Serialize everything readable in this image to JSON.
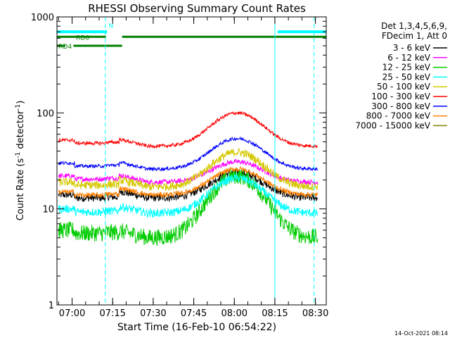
{
  "chart_data": {
    "type": "line",
    "title": "RHESSI Observing Summary Count Rates",
    "xlabel": "Start Time (16-Feb-10 06:54:22)",
    "ylabel_main": "Count Rate (s",
    "ylabel_exp1": "-1",
    "ylabel_mid": " detector",
    "ylabel_exp2": "-1",
    "ylabel_end": ")",
    "yscale": "log",
    "ylim": [
      1,
      1000
    ],
    "xlim_minutes": [
      -5.6,
      94
    ],
    "x_ticks": [
      {
        "m": 0,
        "label": "07:00"
      },
      {
        "m": 15,
        "label": "07:15"
      },
      {
        "m": 30,
        "label": "07:30"
      },
      {
        "m": 45,
        "label": "07:45"
      },
      {
        "m": 60,
        "label": "08:00"
      },
      {
        "m": 75,
        "label": "08:15"
      },
      {
        "m": 90,
        "label": "08:30"
      }
    ],
    "y_ticks": [
      {
        "v": 1,
        "label": "1"
      },
      {
        "v": 10,
        "label": "10"
      },
      {
        "v": 100,
        "label": "100"
      },
      {
        "v": 1000,
        "label": "1000"
      }
    ],
    "legend_header": [
      "Det 1,3,4,5,6,9,",
      "FDecim 1, Att 0"
    ],
    "legend_placement": "right",
    "series": [
      {
        "name": "3 - 6 keV",
        "color": "#000000",
        "noise": 0.09,
        "pre": 14,
        "flat": 13,
        "peak": 24
      },
      {
        "name": "6 - 12 keV",
        "color": "#ff00ff",
        "noise": 0.06,
        "pre": 22,
        "flat": 19,
        "peak": 31
      },
      {
        "name": "12 - 25 keV",
        "color": "#00cc00",
        "noise": 0.2,
        "pre": 6,
        "flat": 5,
        "peak": 22
      },
      {
        "name": "25 - 50 keV",
        "color": "#00ffff",
        "noise": 0.1,
        "pre": 10,
        "flat": 9,
        "peak": 21
      },
      {
        "name": "50 - 100 keV",
        "color": "#d4c800",
        "noise": 0.1,
        "pre": 19,
        "flat": 17,
        "peak": 39
      },
      {
        "name": "100 - 300 keV",
        "color": "#ff0000",
        "noise": 0.04,
        "pre": 52,
        "flat": 45,
        "peak": 100
      },
      {
        "name": "300 - 800 keV",
        "color": "#0000ff",
        "noise": 0.04,
        "pre": 30,
        "flat": 26,
        "peak": 54
      },
      {
        "name": "800 - 7000 keV",
        "color": "#ff8000",
        "noise": 0.06,
        "pre": 15,
        "flat": 14,
        "peak": 26
      },
      {
        "name": "7000 - 15000 keV",
        "color": "#808000",
        "noise": 0.0,
        "pre": 0,
        "flat": 0,
        "peak": 0
      }
    ],
    "event_bars": [
      {
        "label": "",
        "color": "#00ffff",
        "y": 700,
        "segments": [
          [
            -5.6,
            13
          ],
          [
            76,
            94
          ]
        ]
      },
      {
        "label": "RD0",
        "color": "#008000",
        "y": 620,
        "segments": [
          [
            -5.6,
            12.5
          ],
          [
            18.5,
            94
          ]
        ]
      },
      {
        "label": "RD4",
        "color": "#008000",
        "y": 500,
        "segments": [
          [
            -5.6,
            -2.5
          ],
          [
            0.5,
            18.5
          ]
        ]
      },
      {
        "label": "N",
        "color": "#00ffff",
        "y": 810,
        "segments": []
      }
    ],
    "vlines_minutes": [
      -5.6,
      12.3,
      75,
      89.5
    ],
    "timestamp": "14-Oct-2021 08:14"
  }
}
